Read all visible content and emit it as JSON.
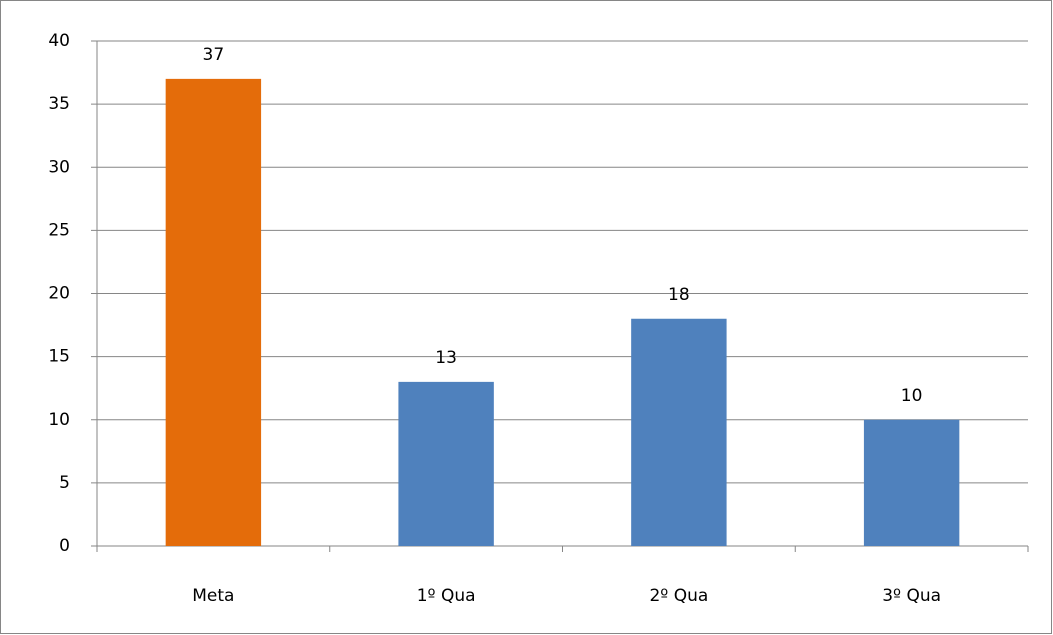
{
  "chart_data": {
    "type": "bar",
    "categories": [
      "Meta",
      "1º Qua",
      "2º Qua",
      "3º Qua"
    ],
    "values": [
      37,
      13,
      18,
      10
    ],
    "colors": [
      "#e46c0a",
      "#4f81bd",
      "#4f81bd",
      "#4f81bd"
    ],
    "ylim": [
      0,
      40
    ],
    "yticks": [
      0,
      5,
      10,
      15,
      20,
      25,
      30,
      35,
      40
    ],
    "grid": true
  }
}
